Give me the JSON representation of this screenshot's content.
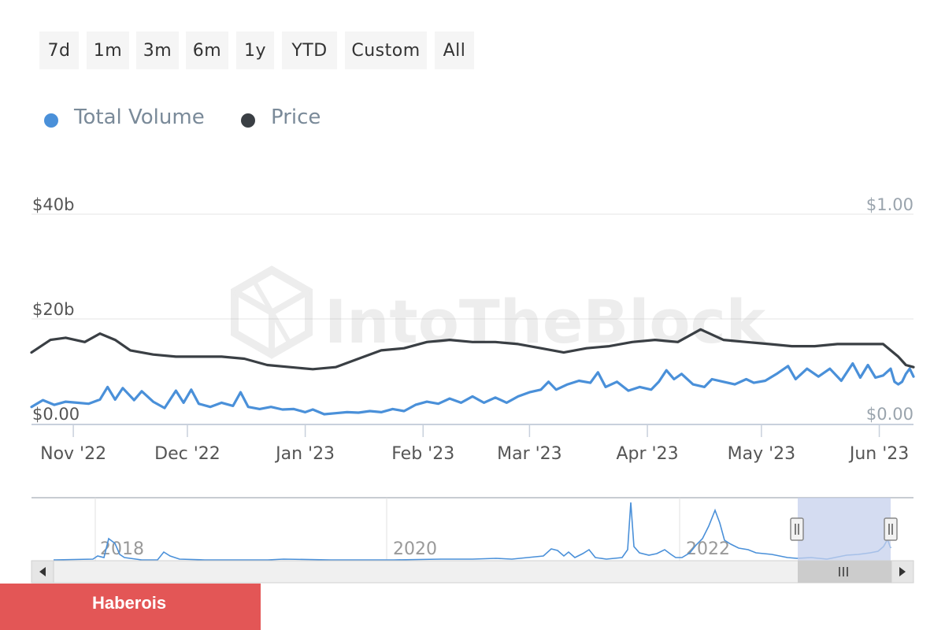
{
  "range_buttons": [
    "7d",
    "1m",
    "3m",
    "6m",
    "1y",
    "YTD",
    "Custom",
    "All"
  ],
  "legend": [
    {
      "label": "Total Volume",
      "color": "#4a90d9"
    },
    {
      "label": "Price",
      "color": "#3a3f44"
    }
  ],
  "watermark": "IntoTheBlock",
  "brand": {
    "label": "Haberois",
    "color": "#e35656"
  },
  "chart_data": {
    "type": "line",
    "x_start": "2022-10-21",
    "x_end": "2023-06-10",
    "x_ticks": [
      {
        "label": "Nov '22",
        "date": "2022-11-01"
      },
      {
        "label": "Dec '22",
        "date": "2022-12-01"
      },
      {
        "label": "Jan '23",
        "date": "2023-01-01"
      },
      {
        "label": "Feb '23",
        "date": "2023-02-01"
      },
      {
        "label": "Mar '23",
        "date": "2023-03-01"
      },
      {
        "label": "Apr '23",
        "date": "2023-04-01"
      },
      {
        "label": "May '23",
        "date": "2023-05-01"
      },
      {
        "label": "Jun '23",
        "date": "2023-06-01"
      }
    ],
    "y_left": {
      "min": 0,
      "max": 40,
      "ticks": [
        {
          "value": 0,
          "label": "$0.00"
        },
        {
          "value": 20,
          "label": "$20b"
        },
        {
          "value": 40,
          "label": "$40b"
        }
      ]
    },
    "y_right": {
      "min": 0,
      "max": 1,
      "ticks": [
        {
          "value": 0,
          "label": "$0.00"
        },
        {
          "value": 1,
          "label": "$1.00"
        }
      ]
    },
    "grid": true,
    "legend_position": "top-left",
    "series": [
      {
        "name": "Total Volume",
        "axis": "left",
        "color": "#4a90d9",
        "points": [
          [
            "2022-10-21",
            3.2
          ],
          [
            "2022-10-24",
            4.5
          ],
          [
            "2022-10-27",
            3.6
          ],
          [
            "2022-10-30",
            4.2
          ],
          [
            "2022-11-02",
            4.0
          ],
          [
            "2022-11-05",
            3.8
          ],
          [
            "2022-11-08",
            4.6
          ],
          [
            "2022-11-10",
            7.0
          ],
          [
            "2022-11-12",
            4.6
          ],
          [
            "2022-11-14",
            6.8
          ],
          [
            "2022-11-17",
            4.5
          ],
          [
            "2022-11-19",
            6.2
          ],
          [
            "2022-11-22",
            4.2
          ],
          [
            "2022-11-25",
            3.0
          ],
          [
            "2022-11-28",
            6.3
          ],
          [
            "2022-11-30",
            4.0
          ],
          [
            "2022-12-02",
            6.5
          ],
          [
            "2022-12-04",
            3.8
          ],
          [
            "2022-12-07",
            3.2
          ],
          [
            "2022-12-10",
            4.0
          ],
          [
            "2022-12-13",
            3.4
          ],
          [
            "2022-12-15",
            6.0
          ],
          [
            "2022-12-17",
            3.2
          ],
          [
            "2022-12-20",
            2.8
          ],
          [
            "2022-12-23",
            3.2
          ],
          [
            "2022-12-26",
            2.7
          ],
          [
            "2022-12-29",
            2.8
          ],
          [
            "2023-01-01",
            2.2
          ],
          [
            "2023-01-03",
            2.7
          ],
          [
            "2023-01-06",
            1.8
          ],
          [
            "2023-01-09",
            2.0
          ],
          [
            "2023-01-12",
            2.2
          ],
          [
            "2023-01-15",
            2.1
          ],
          [
            "2023-01-18",
            2.4
          ],
          [
            "2023-01-21",
            2.2
          ],
          [
            "2023-01-24",
            2.8
          ],
          [
            "2023-01-27",
            2.4
          ],
          [
            "2023-01-30",
            3.6
          ],
          [
            "2023-02-02",
            4.2
          ],
          [
            "2023-02-05",
            3.8
          ],
          [
            "2023-02-08",
            4.8
          ],
          [
            "2023-02-11",
            4.0
          ],
          [
            "2023-02-14",
            5.2
          ],
          [
            "2023-02-17",
            4.0
          ],
          [
            "2023-02-20",
            5.0
          ],
          [
            "2023-02-23",
            4.0
          ],
          [
            "2023-02-26",
            5.2
          ],
          [
            "2023-03-01",
            6.0
          ],
          [
            "2023-03-04",
            6.5
          ],
          [
            "2023-03-06",
            8.0
          ],
          [
            "2023-03-08",
            6.5
          ],
          [
            "2023-03-11",
            7.5
          ],
          [
            "2023-03-14",
            8.2
          ],
          [
            "2023-03-17",
            7.8
          ],
          [
            "2023-03-19",
            9.8
          ],
          [
            "2023-03-21",
            7.0
          ],
          [
            "2023-03-24",
            8.0
          ],
          [
            "2023-03-27",
            6.3
          ],
          [
            "2023-03-30",
            7.0
          ],
          [
            "2023-04-02",
            6.5
          ],
          [
            "2023-04-04",
            8.0
          ],
          [
            "2023-04-06",
            10.2
          ],
          [
            "2023-04-08",
            8.5
          ],
          [
            "2023-04-10",
            9.5
          ],
          [
            "2023-04-13",
            7.5
          ],
          [
            "2023-04-16",
            7.0
          ],
          [
            "2023-04-18",
            8.5
          ],
          [
            "2023-04-21",
            8.0
          ],
          [
            "2023-04-24",
            7.5
          ],
          [
            "2023-04-27",
            8.5
          ],
          [
            "2023-04-29",
            7.8
          ],
          [
            "2023-05-02",
            8.2
          ],
          [
            "2023-05-05",
            9.5
          ],
          [
            "2023-05-08",
            11.0
          ],
          [
            "2023-05-10",
            8.5
          ],
          [
            "2023-05-13",
            10.5
          ],
          [
            "2023-05-16",
            9.0
          ],
          [
            "2023-05-19",
            10.5
          ],
          [
            "2023-05-22",
            8.2
          ],
          [
            "2023-05-25",
            11.5
          ],
          [
            "2023-05-27",
            8.8
          ],
          [
            "2023-05-29",
            11.2
          ],
          [
            "2023-05-31",
            8.8
          ],
          [
            "2023-06-02",
            9.2
          ],
          [
            "2023-06-04",
            10.5
          ],
          [
            "2023-06-05",
            8.0
          ],
          [
            "2023-06-06",
            7.5
          ],
          [
            "2023-06-07",
            8.0
          ],
          [
            "2023-06-08",
            9.5
          ],
          [
            "2023-06-09",
            10.5
          ],
          [
            "2023-06-10",
            9.0
          ]
        ]
      },
      {
        "name": "Price",
        "axis": "right",
        "color": "#3a3f44",
        "points": [
          [
            "2022-10-21",
            0.34
          ],
          [
            "2022-10-26",
            0.4
          ],
          [
            "2022-10-30",
            0.41
          ],
          [
            "2022-11-04",
            0.39
          ],
          [
            "2022-11-08",
            0.43
          ],
          [
            "2022-11-12",
            0.4
          ],
          [
            "2022-11-16",
            0.35
          ],
          [
            "2022-11-22",
            0.33
          ],
          [
            "2022-11-28",
            0.32
          ],
          [
            "2022-12-04",
            0.32
          ],
          [
            "2022-12-10",
            0.32
          ],
          [
            "2022-12-16",
            0.31
          ],
          [
            "2022-12-22",
            0.28
          ],
          [
            "2022-12-28",
            0.27
          ],
          [
            "2023-01-03",
            0.26
          ],
          [
            "2023-01-09",
            0.27
          ],
          [
            "2023-01-15",
            0.31
          ],
          [
            "2023-01-21",
            0.35
          ],
          [
            "2023-01-27",
            0.36
          ],
          [
            "2023-02-02",
            0.39
          ],
          [
            "2023-02-08",
            0.4
          ],
          [
            "2023-02-14",
            0.39
          ],
          [
            "2023-02-20",
            0.39
          ],
          [
            "2023-02-26",
            0.38
          ],
          [
            "2023-03-04",
            0.36
          ],
          [
            "2023-03-10",
            0.34
          ],
          [
            "2023-03-16",
            0.36
          ],
          [
            "2023-03-22",
            0.37
          ],
          [
            "2023-03-28",
            0.39
          ],
          [
            "2023-04-03",
            0.4
          ],
          [
            "2023-04-09",
            0.39
          ],
          [
            "2023-04-15",
            0.45
          ],
          [
            "2023-04-21",
            0.4
          ],
          [
            "2023-04-27",
            0.39
          ],
          [
            "2023-05-03",
            0.38
          ],
          [
            "2023-05-09",
            0.37
          ],
          [
            "2023-05-15",
            0.37
          ],
          [
            "2023-05-21",
            0.38
          ],
          [
            "2023-05-27",
            0.38
          ],
          [
            "2023-06-02",
            0.38
          ],
          [
            "2023-06-06",
            0.32
          ],
          [
            "2023-06-08",
            0.28
          ],
          [
            "2023-06-10",
            0.27
          ]
        ]
      }
    ],
    "navigator": {
      "x_labels": [
        {
          "label": "2018"
        },
        {
          "label": "2020"
        },
        {
          "label": "2022"
        }
      ],
      "selected_range": [
        "2022-10-21",
        "2023-06-10"
      ]
    }
  }
}
